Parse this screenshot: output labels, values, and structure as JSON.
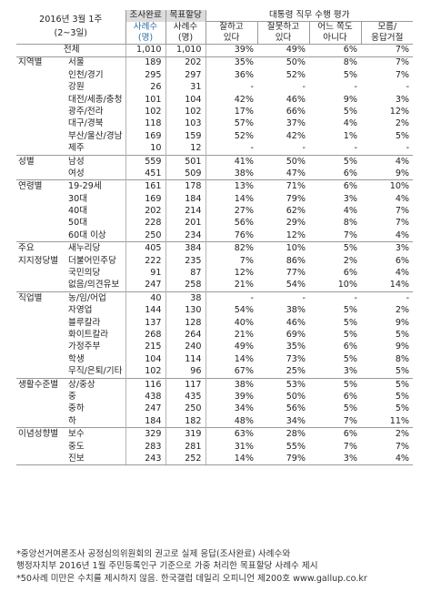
{
  "header": {
    "date": "2016년 3월 1주",
    "weeks": "(2~3일)",
    "col_completed": "조사완료",
    "col_completed_sub": "사례수",
    "col_completed_unit": "(명)",
    "col_target": "목표할당",
    "col_target_sub": "사례수",
    "col_target_unit": "(명)",
    "eval_title": "대통령 직무 수행 평가",
    "eval_cols": [
      {
        "line1": "잘하고",
        "line2": "있다"
      },
      {
        "line1": "잘못하고",
        "line2": "있다"
      },
      {
        "line1": "어느 쪽도",
        "line2": "아니다"
      },
      {
        "line1": "모름/",
        "line2": "응답거절"
      }
    ]
  },
  "total": {
    "label": "전체",
    "n": "1,010",
    "target": "1,010",
    "v": [
      "39%",
      "49%",
      "6%",
      "7%"
    ]
  },
  "groups": [
    {
      "name": "지역별",
      "rows": [
        {
          "label": "서울",
          "n": "189",
          "t": "202",
          "v": [
            "35%",
            "50%",
            "8%",
            "7%"
          ]
        },
        {
          "label": "인천/경기",
          "n": "295",
          "t": "297",
          "v": [
            "36%",
            "52%",
            "5%",
            "7%"
          ]
        },
        {
          "label": "강원",
          "n": "26",
          "t": "31",
          "v": [
            "-",
            "-",
            "-",
            "-"
          ]
        },
        {
          "label": "대전/세종/충청",
          "n": "101",
          "t": "104",
          "v": [
            "42%",
            "46%",
            "9%",
            "3%"
          ]
        },
        {
          "label": "광주/전라",
          "n": "102",
          "t": "102",
          "v": [
            "17%",
            "66%",
            "5%",
            "12%"
          ]
        },
        {
          "label": "대구/경북",
          "n": "118",
          "t": "103",
          "v": [
            "57%",
            "37%",
            "4%",
            "2%"
          ]
        },
        {
          "label": "부산/울산/경남",
          "n": "169",
          "t": "159",
          "v": [
            "52%",
            "42%",
            "1%",
            "5%"
          ]
        },
        {
          "label": "제주",
          "n": "10",
          "t": "12",
          "v": [
            "-",
            "-",
            "-",
            "-"
          ]
        }
      ]
    },
    {
      "name": "성별",
      "rows": [
        {
          "label": "남성",
          "n": "559",
          "t": "501",
          "v": [
            "41%",
            "50%",
            "5%",
            "4%"
          ]
        },
        {
          "label": "여성",
          "n": "451",
          "t": "509",
          "v": [
            "38%",
            "47%",
            "6%",
            "9%"
          ]
        }
      ]
    },
    {
      "name": "연령별",
      "rows": [
        {
          "label": "19-29세",
          "n": "161",
          "t": "178",
          "v": [
            "13%",
            "71%",
            "6%",
            "10%"
          ]
        },
        {
          "label": "30대",
          "n": "169",
          "t": "184",
          "v": [
            "14%",
            "79%",
            "3%",
            "4%"
          ]
        },
        {
          "label": "40대",
          "n": "202",
          "t": "214",
          "v": [
            "27%",
            "62%",
            "4%",
            "7%"
          ]
        },
        {
          "label": "50대",
          "n": "228",
          "t": "201",
          "v": [
            "56%",
            "29%",
            "8%",
            "7%"
          ]
        },
        {
          "label": "60대 이상",
          "n": "250",
          "t": "234",
          "v": [
            "76%",
            "12%",
            "7%",
            "4%"
          ]
        }
      ]
    },
    {
      "name": "주요",
      "name2": "지지정당별",
      "rows": [
        {
          "label": "새누리당",
          "n": "405",
          "t": "384",
          "v": [
            "82%",
            "10%",
            "5%",
            "3%"
          ]
        },
        {
          "label": "더불어민주당",
          "n": "222",
          "t": "235",
          "v": [
            "7%",
            "86%",
            "2%",
            "6%"
          ]
        },
        {
          "label": "국민의당",
          "n": "91",
          "t": "87",
          "v": [
            "12%",
            "77%",
            "6%",
            "4%"
          ]
        },
        {
          "label": "없음/의견유보",
          "n": "247",
          "t": "258",
          "v": [
            "21%",
            "54%",
            "10%",
            "14%"
          ]
        }
      ]
    },
    {
      "name": "직업별",
      "rows": [
        {
          "label": "농/임/어업",
          "n": "40",
          "t": "38",
          "v": [
            "-",
            "-",
            "-",
            "-"
          ]
        },
        {
          "label": "자영업",
          "n": "144",
          "t": "130",
          "v": [
            "54%",
            "38%",
            "5%",
            "2%"
          ]
        },
        {
          "label": "블루칼라",
          "n": "137",
          "t": "128",
          "v": [
            "40%",
            "46%",
            "5%",
            "9%"
          ]
        },
        {
          "label": "화이트칼라",
          "n": "268",
          "t": "264",
          "v": [
            "21%",
            "69%",
            "5%",
            "5%"
          ]
        },
        {
          "label": "가정주부",
          "n": "215",
          "t": "240",
          "v": [
            "49%",
            "35%",
            "6%",
            "9%"
          ]
        },
        {
          "label": "학생",
          "n": "104",
          "t": "114",
          "v": [
            "14%",
            "73%",
            "5%",
            "8%"
          ]
        },
        {
          "label": "무직/은퇴/기타",
          "n": "102",
          "t": "96",
          "v": [
            "67%",
            "25%",
            "3%",
            "5%"
          ]
        }
      ]
    },
    {
      "name": "생활수준별",
      "rows": [
        {
          "label": "상/중상",
          "n": "116",
          "t": "117",
          "v": [
            "38%",
            "53%",
            "5%",
            "5%"
          ]
        },
        {
          "label": "중",
          "n": "438",
          "t": "435",
          "v": [
            "39%",
            "50%",
            "6%",
            "5%"
          ]
        },
        {
          "label": "중하",
          "n": "247",
          "t": "250",
          "v": [
            "34%",
            "56%",
            "5%",
            "5%"
          ]
        },
        {
          "label": "하",
          "n": "184",
          "t": "182",
          "v": [
            "48%",
            "34%",
            "7%",
            "11%"
          ]
        }
      ]
    },
    {
      "name": "이념성향별",
      "rows": [
        {
          "label": "보수",
          "n": "329",
          "t": "319",
          "v": [
            "63%",
            "28%",
            "6%",
            "2%"
          ]
        },
        {
          "label": "중도",
          "n": "283",
          "t": "281",
          "v": [
            "31%",
            "55%",
            "7%",
            "7%"
          ]
        },
        {
          "label": "진보",
          "n": "243",
          "t": "252",
          "v": [
            "14%",
            "79%",
            "3%",
            "4%"
          ]
        }
      ]
    }
  ],
  "footnotes": [
    "*중앙선거여론조사 공정심의위원회의 권고로 실제 응답(조사완료) 사례수와",
    "  행정자치부 2016년 1월 주민등록인구 기준으로 가중 처리한 목표할당 사례수 제시",
    "*50사례 미만은 수치를 제시하지 않음. 한국갤럽 데일리 오피니언 제200호 www.gallup.co.kr"
  ]
}
